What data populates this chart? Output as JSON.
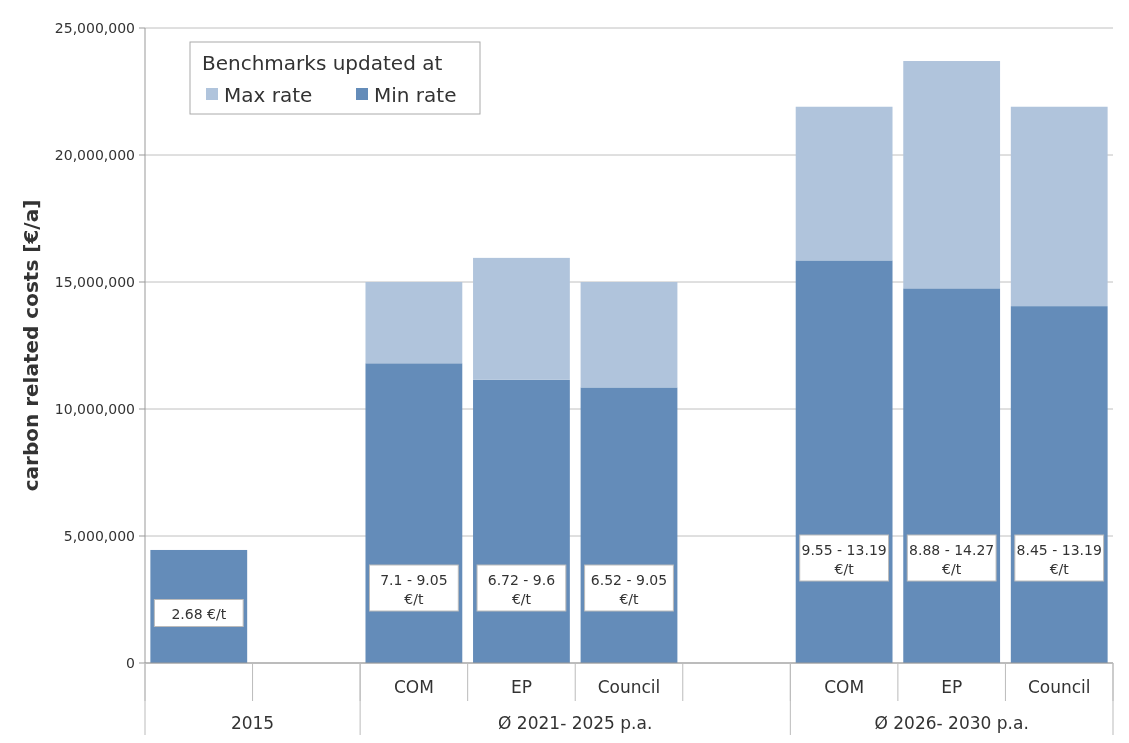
{
  "chart_data": {
    "type": "bar",
    "stacked": true,
    "ylabel": "carbon related costs [€/a]",
    "legend_title": "Benchmarks updated at",
    "legend": "top left",
    "grid": "y",
    "categories": [
      null,
      null,
      "COM",
      "EP",
      "Council",
      null,
      "COM",
      "EP",
      "Council"
    ],
    "series": [
      {
        "name": "Min rate",
        "color": "#648cb9",
        "values": [
          4450000,
          null,
          11800000,
          11150000,
          10850000,
          null,
          15850000,
          14750000,
          14050000
        ]
      },
      {
        "name": "Max rate",
        "color": "#b0c4dc",
        "values": [
          null,
          null,
          3200000,
          4800000,
          4150000,
          null,
          6050000,
          8950000,
          7850000
        ]
      }
    ],
    "ylim": [
      0,
      25000000
    ],
    "yticks": [
      {
        "value": 0,
        "label": "0"
      },
      {
        "value": 5000000,
        "label": "5,000,000"
      },
      {
        "value": 10000000,
        "label": "10,000,000"
      },
      {
        "value": 15000000,
        "label": "15,000,000"
      },
      {
        "value": 20000000,
        "label": "20,000,000"
      },
      {
        "value": 25000000,
        "label": "25,000,000"
      }
    ],
    "annotations": [
      "2015",
      "Ø 2021- 2025 p.a.",
      "Ø 2026- 2030 p.a.",
      "2.68 €/t",
      "7.1 - 9.05 €/t",
      "6.72 - 9.6 €/t",
      "6.52 - 9.05 €/t",
      "9.55 - 13.19 €/t",
      "8.88 - 14.27 €/t",
      "8.45 - 13.19 €/t"
    ]
  }
}
